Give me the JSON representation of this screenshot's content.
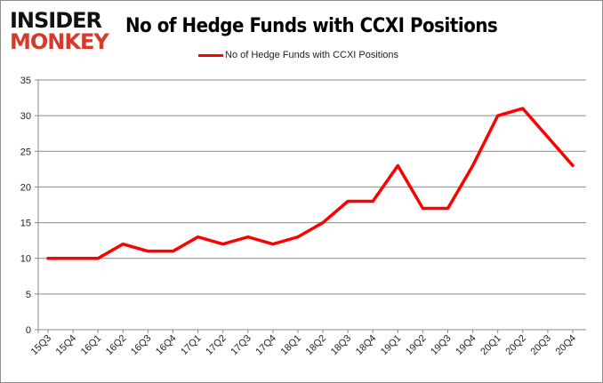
{
  "logo": {
    "line1": "INSIDER",
    "line2": "MONKEY"
  },
  "chart_data": {
    "type": "line",
    "title": "No of Hedge Funds with CCXI Positions",
    "xlabel": "",
    "ylabel": "",
    "categories": [
      "15Q3",
      "15Q4",
      "16Q1",
      "16Q2",
      "16Q3",
      "16Q4",
      "17Q1",
      "17Q2",
      "17Q3",
      "17Q4",
      "18Q1",
      "18Q2",
      "18Q3",
      "18Q4",
      "19Q1",
      "19Q2",
      "19Q3",
      "19Q4",
      "20Q1",
      "20Q2",
      "20Q3",
      "20Q4"
    ],
    "series": [
      {
        "name": "No of Hedge Funds with CCXI Positions",
        "color": "#ff0000",
        "values": [
          10,
          10,
          10,
          12,
          11,
          11,
          13,
          12,
          13,
          12,
          13,
          15,
          18,
          18,
          23,
          17,
          17,
          23,
          30,
          31,
          27,
          23
        ]
      }
    ],
    "ylim": [
      0,
      35
    ],
    "yticks": [
      0,
      5,
      10,
      15,
      20,
      25,
      30,
      35
    ],
    "grid": true,
    "legend": "top-center"
  }
}
